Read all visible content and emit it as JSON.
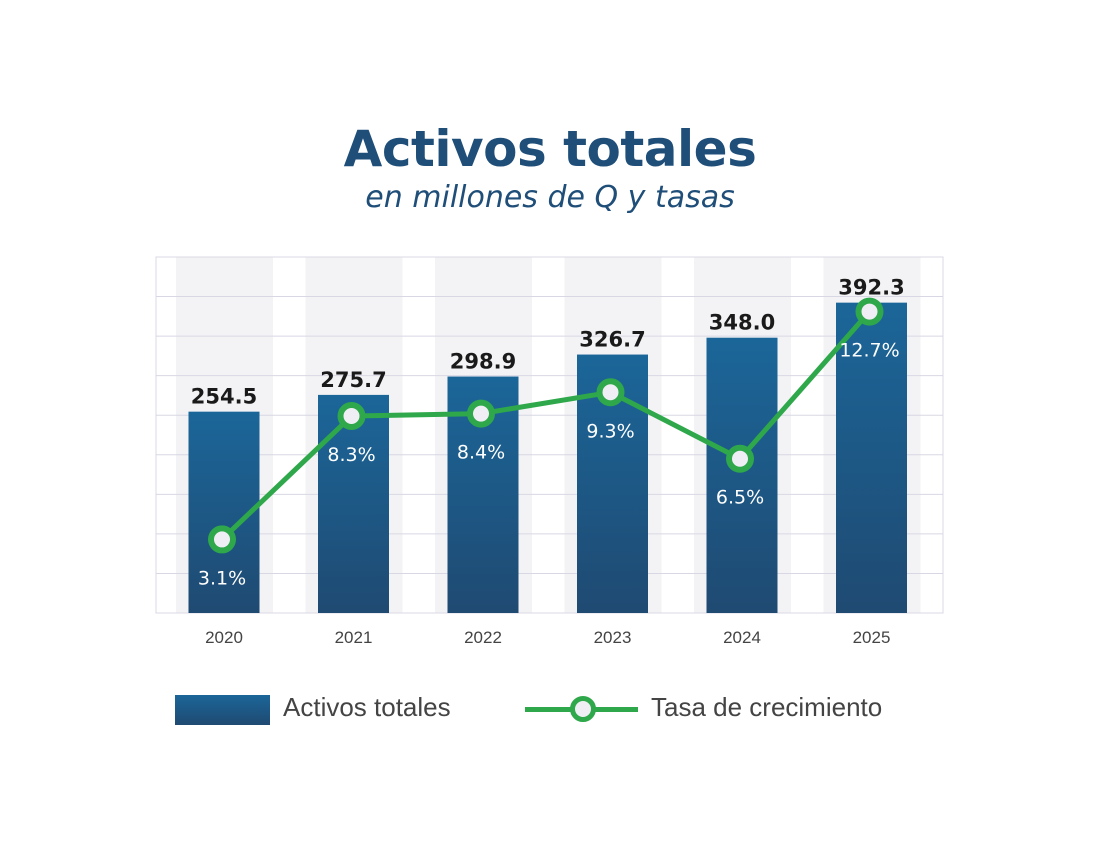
{
  "chart_data": {
    "type": "bar+line",
    "title": "Activos totales",
    "subtitle": "en millones de Q y tasas",
    "categories": [
      "2020",
      "2021",
      "2022",
      "2023",
      "2024",
      "2025"
    ],
    "series": [
      {
        "name": "Activos totales",
        "type": "bar",
        "axis": "left",
        "values": [
          254.5,
          275.7,
          298.9,
          326.7,
          348.0,
          392.3
        ],
        "labels": [
          "254.5",
          "275.7",
          "298.9",
          "326.7",
          "348.0",
          "392.3"
        ]
      },
      {
        "name": "Tasa de crecimiento",
        "type": "line",
        "axis": "right",
        "unit": "%",
        "values": [
          3.1,
          8.3,
          8.4,
          9.3,
          6.5,
          12.7
        ],
        "labels": [
          "3.1%",
          "8.3%",
          "8.4%",
          "9.3%",
          "6.5%",
          "12.7%"
        ]
      }
    ],
    "ylim_left": [
      0,
      450
    ],
    "ylim_right": [
      0,
      15
    ],
    "grid": true,
    "legend_position": "bottom",
    "colors": {
      "bar_top": "#1b6699",
      "bar_bottom": "#1f4a72",
      "line": "#2ea84a",
      "marker_fill": "#f0eef5",
      "title": "#1f4e79",
      "band": "#f3f3f5",
      "grid": "#d8d8e4"
    }
  }
}
